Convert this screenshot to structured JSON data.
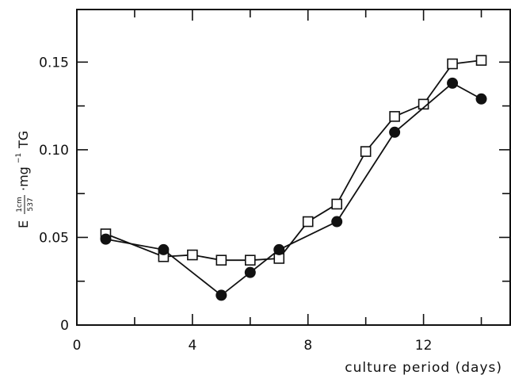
{
  "chart_data": {
    "type": "line",
    "title": "",
    "xlabel": "culture period (days)",
    "ylabel": {
      "prefix": "E",
      "sup": "1cm",
      "sub": "537",
      "suffix_1": "·mg",
      "suffix_sup": "−1",
      "suffix_2": "TG"
    },
    "xlim": [
      0,
      15
    ],
    "ylim": [
      0,
      0.18
    ],
    "x_ticks": [
      0,
      4,
      8,
      12
    ],
    "x_tick_labels": [
      "0",
      "4",
      "8",
      "12"
    ],
    "y_ticks": [
      0,
      0.05,
      0.1,
      0.15
    ],
    "y_tick_labels": [
      "0",
      "0.05",
      "0.10",
      "0.15"
    ],
    "grid": false,
    "legend": "none",
    "series": [
      {
        "marker": "open-square",
        "x": [
          1,
          3,
          4,
          5,
          6,
          7,
          8,
          9,
          10,
          11,
          12,
          13,
          14
        ],
        "y": [
          0.052,
          0.039,
          0.04,
          0.037,
          0.037,
          0.038,
          0.059,
          0.069,
          0.099,
          0.119,
          0.126,
          0.149,
          0.151
        ]
      },
      {
        "marker": "filled-circle",
        "x": [
          1,
          3,
          5,
          6,
          7,
          9,
          11,
          13,
          14
        ],
        "y": [
          0.049,
          0.043,
          0.017,
          0.03,
          0.043,
          0.059,
          0.11,
          0.138,
          0.129
        ]
      }
    ],
    "colors": {
      "ink": "#111111",
      "background": "#ffffff"
    }
  }
}
